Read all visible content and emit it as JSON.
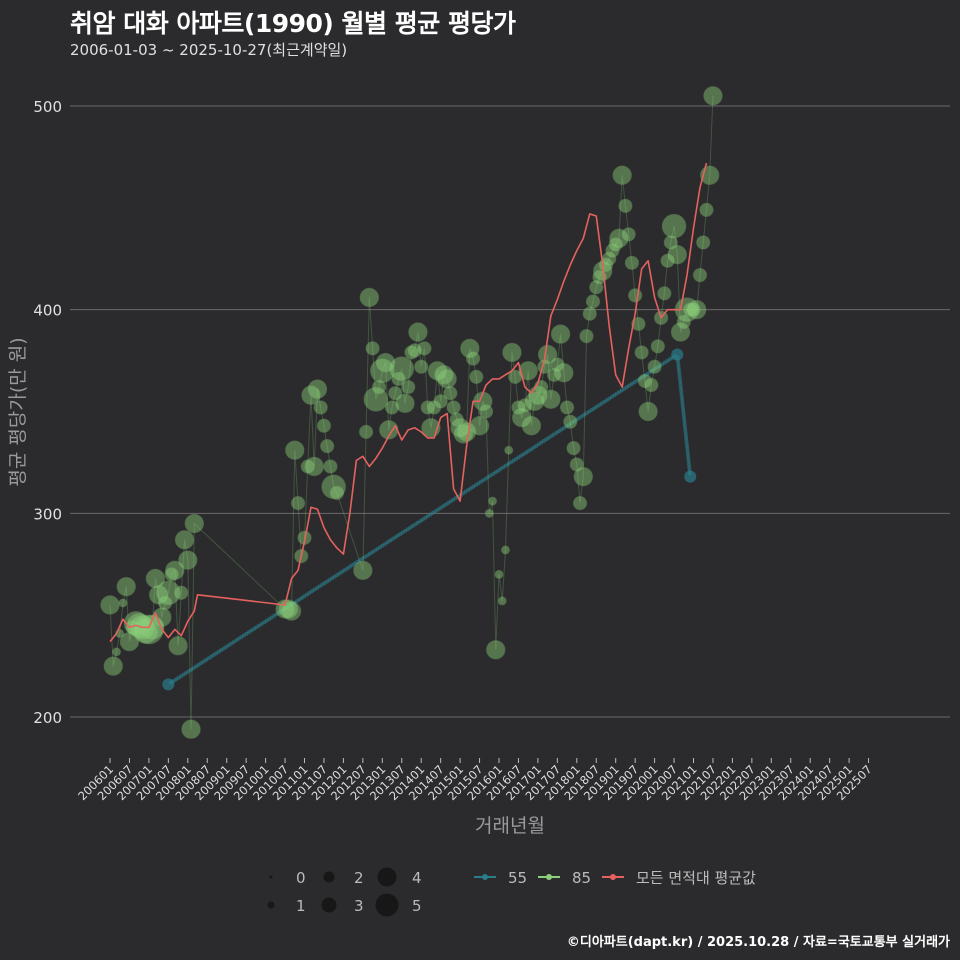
{
  "title": "취암 대화 아파트(1990) 월별 평균 평당가",
  "subtitle": "2006-01-03 ~ 2025-10-27(최근계약일)",
  "footer": "©디아파트(dapt.kr) / 2025.10.28 / 자료=국토교통부 실거래가",
  "colors": {
    "background": "#2b2b2d",
    "grid": "#6a6a6a",
    "series_55": "#2a7d8a",
    "series_85": "#8cd07a",
    "series_avg": "#e5625e"
  },
  "chart_data": {
    "type": "scatter",
    "title": "취암 대화 아파트(1990) 월별 평균 평당가",
    "xlabel": "거래년월",
    "ylabel": "평균 평당가(만 원)",
    "ylim": [
      180,
      515
    ],
    "yticks": [
      200,
      300,
      400,
      500
    ],
    "xticks": [
      "200601",
      "200607",
      "200701",
      "200707",
      "200801",
      "200807",
      "200901",
      "200907",
      "201001",
      "201007",
      "201101",
      "201107",
      "201201",
      "201207",
      "201301",
      "201307",
      "201401",
      "201407",
      "201501",
      "201507",
      "201601",
      "201607",
      "201701",
      "201707",
      "201801",
      "201807",
      "201901",
      "201907",
      "202001",
      "202007",
      "202101",
      "202107",
      "202201",
      "202207",
      "202301",
      "202307",
      "202401",
      "202407",
      "202501",
      "202507"
    ],
    "size_legend": {
      "labels": [
        "0",
        "1",
        "2",
        "3",
        "4",
        "5"
      ]
    },
    "series": [
      {
        "name": "55",
        "type": "line",
        "points": [
          [
            "200707",
            216
          ],
          [
            "202008",
            378
          ],
          [
            "202012",
            318
          ]
        ]
      },
      {
        "name": "85",
        "type": "scatter+line",
        "points": [
          [
            "200601",
            255,
            2
          ],
          [
            "200602",
            225,
            2
          ],
          [
            "200603",
            232,
            0
          ],
          [
            "200604",
            241,
            0
          ],
          [
            "200605",
            256,
            0
          ],
          [
            "200606",
            264,
            2
          ],
          [
            "200607",
            237,
            2
          ],
          [
            "200608",
            244,
            1
          ],
          [
            "200609",
            246,
            3
          ],
          [
            "200610",
            245,
            3
          ],
          [
            "200611",
            244,
            3
          ],
          [
            "200612",
            242,
            3
          ],
          [
            "200701",
            243,
            4
          ],
          [
            "200702",
            244,
            3
          ],
          [
            "200703",
            268,
            2
          ],
          [
            "200704",
            260,
            2
          ],
          [
            "200705",
            249,
            2
          ],
          [
            "200706",
            256,
            1
          ],
          [
            "200707",
            261,
            3
          ],
          [
            "200708",
            270,
            1
          ],
          [
            "200709",
            272,
            2
          ],
          [
            "200710",
            235,
            2
          ],
          [
            "200711",
            261,
            1
          ],
          [
            "200712",
            287,
            2
          ],
          [
            "200801",
            277,
            2
          ],
          [
            "200802",
            194,
            2
          ],
          [
            "200803",
            295,
            2
          ],
          [
            "201007",
            253,
            2
          ],
          [
            "201008",
            253,
            2
          ],
          [
            "201009",
            252,
            2
          ],
          [
            "201010",
            331,
            2
          ],
          [
            "201011",
            305,
            1
          ],
          [
            "201012",
            279,
            1
          ],
          [
            "201101",
            288,
            1
          ],
          [
            "201102",
            323,
            1
          ],
          [
            "201103",
            358,
            2
          ],
          [
            "201104",
            323,
            2
          ],
          [
            "201105",
            361,
            2
          ],
          [
            "201106",
            352,
            1
          ],
          [
            "201107",
            343,
            1
          ],
          [
            "201108",
            333,
            1
          ],
          [
            "201109",
            323,
            1
          ],
          [
            "201110",
            313,
            3
          ],
          [
            "201111",
            310,
            1
          ],
          [
            "201207",
            272,
            2
          ],
          [
            "201208",
            340,
            1
          ],
          [
            "201209",
            406,
            2
          ],
          [
            "201210",
            381,
            1
          ],
          [
            "201211",
            356,
            3
          ],
          [
            "201212",
            362,
            1
          ],
          [
            "201301",
            370,
            3
          ],
          [
            "201302",
            374,
            2
          ],
          [
            "201303",
            341,
            2
          ],
          [
            "201304",
            352,
            1
          ],
          [
            "201305",
            359,
            1
          ],
          [
            "201306",
            366,
            1
          ],
          [
            "201307",
            371,
            3
          ],
          [
            "201308",
            354,
            2
          ],
          [
            "201309",
            362,
            1
          ],
          [
            "201310",
            379,
            1
          ],
          [
            "201311",
            380,
            1
          ],
          [
            "201312",
            389,
            2
          ],
          [
            "201401",
            372,
            1
          ],
          [
            "201402",
            381,
            1
          ],
          [
            "201403",
            352,
            1
          ],
          [
            "201404",
            342,
            2
          ],
          [
            "201405",
            352,
            1
          ],
          [
            "201406",
            370,
            2
          ],
          [
            "201407",
            355,
            1
          ],
          [
            "201408",
            368,
            2
          ],
          [
            "201409",
            366,
            2
          ],
          [
            "201410",
            359,
            1
          ],
          [
            "201411",
            352,
            1
          ],
          [
            "201412",
            346,
            1
          ],
          [
            "201501",
            342,
            2
          ],
          [
            "201502",
            339,
            2
          ],
          [
            "201503",
            340,
            2
          ],
          [
            "201504",
            381,
            2
          ],
          [
            "201505",
            376,
            1
          ],
          [
            "201506",
            367,
            1
          ],
          [
            "201507",
            343,
            2
          ],
          [
            "201508",
            355,
            2
          ],
          [
            "201509",
            350,
            1
          ],
          [
            "201510",
            300,
            0
          ],
          [
            "201511",
            306,
            0
          ],
          [
            "201512",
            233,
            2
          ],
          [
            "201601",
            270,
            0
          ],
          [
            "201602",
            257,
            0
          ],
          [
            "201603",
            282,
            0
          ],
          [
            "201604",
            331,
            0
          ],
          [
            "201605",
            379,
            2
          ],
          [
            "201606",
            367,
            1
          ],
          [
            "201607",
            352,
            1
          ],
          [
            "201608",
            347,
            2
          ],
          [
            "201609",
            353,
            1
          ],
          [
            "201610",
            370,
            2
          ],
          [
            "201611",
            343,
            2
          ],
          [
            "201612",
            355,
            2
          ],
          [
            "201701",
            358,
            2
          ],
          [
            "201702",
            362,
            1
          ],
          [
            "201703",
            372,
            1
          ],
          [
            "201704",
            378,
            2
          ],
          [
            "201705",
            356,
            2
          ],
          [
            "201706",
            368,
            1
          ],
          [
            "201707",
            373,
            1
          ],
          [
            "201708",
            388,
            2
          ],
          [
            "201709",
            369,
            2
          ],
          [
            "201710",
            352,
            1
          ],
          [
            "201711",
            345,
            1
          ],
          [
            "201712",
            332,
            1
          ],
          [
            "201801",
            324,
            1
          ],
          [
            "201802",
            305,
            1
          ],
          [
            "201803",
            318,
            2
          ],
          [
            "201804",
            387,
            1
          ],
          [
            "201805",
            398,
            1
          ],
          [
            "201806",
            404,
            1
          ],
          [
            "201807",
            411,
            1
          ],
          [
            "201808",
            416,
            1
          ],
          [
            "201809",
            419,
            2
          ],
          [
            "201810",
            422,
            1
          ],
          [
            "201811",
            425,
            1
          ],
          [
            "201812",
            429,
            1
          ],
          [
            "201901",
            432,
            1
          ],
          [
            "201902",
            435,
            2
          ],
          [
            "201903",
            466,
            2
          ],
          [
            "201904",
            451,
            1
          ],
          [
            "201905",
            437,
            1
          ],
          [
            "201906",
            423,
            1
          ],
          [
            "201907",
            407,
            1
          ],
          [
            "201908",
            393,
            1
          ],
          [
            "201909",
            379,
            1
          ],
          [
            "201910",
            365,
            1
          ],
          [
            "201911",
            350,
            2
          ],
          [
            "201912",
            363,
            1
          ],
          [
            "202001",
            372,
            1
          ],
          [
            "202002",
            382,
            1
          ],
          [
            "202003",
            396,
            1
          ],
          [
            "202004",
            408,
            1
          ],
          [
            "202005",
            424,
            1
          ],
          [
            "202006",
            433,
            1
          ],
          [
            "202007",
            441,
            3
          ],
          [
            "202008",
            427,
            2
          ],
          [
            "202009",
            389,
            2
          ],
          [
            "202010",
            394,
            1
          ],
          [
            "202011",
            400,
            3
          ],
          [
            "202012",
            400,
            1
          ],
          [
            "202101",
            400,
            1
          ],
          [
            "202102",
            400,
            2
          ],
          [
            "202103",
            417,
            1
          ],
          [
            "202104",
            433,
            1
          ],
          [
            "202105",
            449,
            1
          ],
          [
            "202106",
            466,
            2
          ],
          [
            "202107",
            505,
            2
          ]
        ]
      },
      {
        "name": "모든 면적대 평균값",
        "type": "line",
        "points": [
          [
            "200601",
            237
          ],
          [
            "200603",
            241
          ],
          [
            "200605",
            248
          ],
          [
            "200607",
            244
          ],
          [
            "200609",
            245
          ],
          [
            "200611",
            244
          ],
          [
            "200701",
            244
          ],
          [
            "200703",
            251
          ],
          [
            "200705",
            243
          ],
          [
            "200707",
            239
          ],
          [
            "200709",
            243
          ],
          [
            "200711",
            240
          ],
          [
            "200801",
            247
          ],
          [
            "200803",
            252
          ],
          [
            "200804",
            260
          ],
          [
            "201007",
            255
          ],
          [
            "201009",
            268
          ],
          [
            "201011",
            272
          ],
          [
            "201101",
            286
          ],
          [
            "201103",
            303
          ],
          [
            "201105",
            302
          ],
          [
            "201107",
            293
          ],
          [
            "201109",
            287
          ],
          [
            "201111",
            283
          ],
          [
            "201201",
            280
          ],
          [
            "201203",
            300
          ],
          [
            "201205",
            326
          ],
          [
            "201207",
            328
          ],
          [
            "201209",
            323
          ],
          [
            "201211",
            327
          ],
          [
            "201301",
            332
          ],
          [
            "201303",
            338
          ],
          [
            "201305",
            343
          ],
          [
            "201307",
            336
          ],
          [
            "201309",
            341
          ],
          [
            "201311",
            342
          ],
          [
            "201401",
            340
          ],
          [
            "201403",
            337
          ],
          [
            "201405",
            337
          ],
          [
            "201407",
            347
          ],
          [
            "201409",
            349
          ],
          [
            "201411",
            312
          ],
          [
            "201501",
            306
          ],
          [
            "201503",
            333
          ],
          [
            "201505",
            355
          ],
          [
            "201507",
            355
          ],
          [
            "201509",
            363
          ],
          [
            "201511",
            366
          ],
          [
            "201601",
            366
          ],
          [
            "201603",
            368
          ],
          [
            "201605",
            370
          ],
          [
            "201607",
            374
          ],
          [
            "201609",
            362
          ],
          [
            "201611",
            359
          ],
          [
            "201701",
            364
          ],
          [
            "201703",
            375
          ],
          [
            "201705",
            397
          ],
          [
            "201707",
            405
          ],
          [
            "201709",
            414
          ],
          [
            "201711",
            422
          ],
          [
            "201801",
            429
          ],
          [
            "201803",
            435
          ],
          [
            "201805",
            447
          ],
          [
            "201807",
            446
          ],
          [
            "201809",
            422
          ],
          [
            "201811",
            392
          ],
          [
            "201901",
            368
          ],
          [
            "201903",
            362
          ],
          [
            "201905",
            381
          ],
          [
            "201907",
            398
          ],
          [
            "201909",
            420
          ],
          [
            "201911",
            424
          ],
          [
            "202001",
            406
          ],
          [
            "202003",
            396
          ],
          [
            "202005",
            400
          ],
          [
            "202007",
            400
          ],
          [
            "202009",
            400
          ],
          [
            "202011",
            417
          ],
          [
            "202101",
            440
          ],
          [
            "202103",
            460
          ],
          [
            "202105",
            472
          ]
        ]
      }
    ]
  },
  "legend": {
    "size_labels": [
      "0",
      "1",
      "2",
      "3",
      "4",
      "5"
    ],
    "series_labels": [
      "55",
      "85",
      "모든 면적대 평균값"
    ]
  }
}
